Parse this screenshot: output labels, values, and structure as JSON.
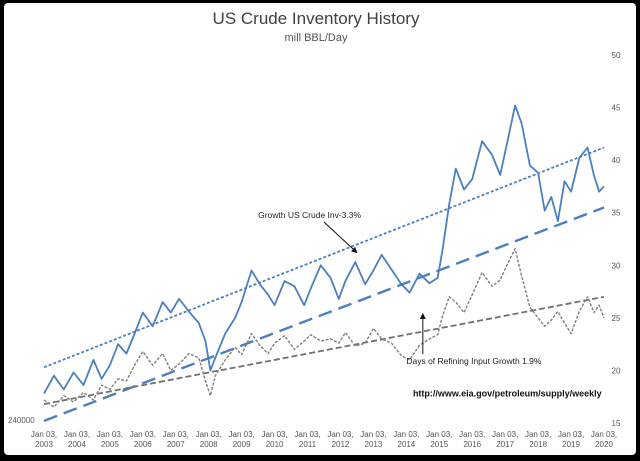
{
  "chart_data": {
    "type": "line",
    "title": "US Crude Inventory History",
    "subtitle": "mill BBL/Day",
    "left_axis_label": "240000",
    "x_tick_labels": [
      [
        "Jan 03,",
        "2003"
      ],
      [
        "Jan 03,",
        "2004"
      ],
      [
        "Jan 03,",
        "2005"
      ],
      [
        "Jan 03,",
        "2006"
      ],
      [
        "Jan 03,",
        "2007"
      ],
      [
        "Jan 03,",
        "2008"
      ],
      [
        "Jan 03,",
        "2009"
      ],
      [
        "Jan 03,",
        "2010"
      ],
      [
        "Jan 03,",
        "2011"
      ],
      [
        "Jan 03,",
        "2012"
      ],
      [
        "Jan 03,",
        "2013"
      ],
      [
        "Jan 03,",
        "2014"
      ],
      [
        "Jan 03,",
        "2015"
      ],
      [
        "Jan 03,",
        "2016"
      ],
      [
        "Jan 03,",
        "2017"
      ],
      [
        "Jan 03,",
        "2018"
      ],
      [
        "Jan 03,",
        "2019"
      ],
      [
        "Jan 03,",
        "2020"
      ]
    ],
    "y_right": {
      "ticks": [
        15,
        20,
        25,
        30,
        35,
        40,
        45,
        50
      ],
      "ylim": [
        15,
        50
      ]
    },
    "x_range": [
      2003.0,
      2020.0
    ],
    "grid": false,
    "series": [
      {
        "name": "US Crude Inventory",
        "color": "#4a7fc0",
        "style": "solid",
        "points": [
          [
            2003.0,
            17.8
          ],
          [
            2003.3,
            19.5
          ],
          [
            2003.6,
            18.2
          ],
          [
            2003.9,
            19.8
          ],
          [
            2004.2,
            18.6
          ],
          [
            2004.5,
            21.0
          ],
          [
            2004.75,
            19.2
          ],
          [
            2005.0,
            20.5
          ],
          [
            2005.25,
            22.5
          ],
          [
            2005.5,
            21.6
          ],
          [
            2005.75,
            23.5
          ],
          [
            2006.0,
            25.5
          ],
          [
            2006.3,
            24.2
          ],
          [
            2006.6,
            26.5
          ],
          [
            2006.85,
            25.5
          ],
          [
            2007.1,
            26.8
          ],
          [
            2007.4,
            25.6
          ],
          [
            2007.7,
            24.5
          ],
          [
            2007.9,
            22.8
          ],
          [
            2008.05,
            20.0
          ],
          [
            2008.2,
            21.2
          ],
          [
            2008.5,
            23.5
          ],
          [
            2008.8,
            25.0
          ],
          [
            2009.0,
            26.5
          ],
          [
            2009.3,
            29.5
          ],
          [
            2009.55,
            28.2
          ],
          [
            2009.8,
            27.2
          ],
          [
            2010.0,
            26.2
          ],
          [
            2010.3,
            28.5
          ],
          [
            2010.6,
            28.0
          ],
          [
            2010.9,
            26.2
          ],
          [
            2011.1,
            27.8
          ],
          [
            2011.4,
            30.0
          ],
          [
            2011.7,
            28.8
          ],
          [
            2011.95,
            26.8
          ],
          [
            2012.15,
            28.5
          ],
          [
            2012.45,
            30.3
          ],
          [
            2012.75,
            28.2
          ],
          [
            2013.0,
            29.5
          ],
          [
            2013.25,
            31.0
          ],
          [
            2013.55,
            29.6
          ],
          [
            2013.85,
            28.2
          ],
          [
            2014.1,
            27.4
          ],
          [
            2014.4,
            29.2
          ],
          [
            2014.7,
            28.3
          ],
          [
            2014.95,
            28.8
          ],
          [
            2015.1,
            31.5
          ],
          [
            2015.3,
            35.8
          ],
          [
            2015.5,
            39.2
          ],
          [
            2015.75,
            37.2
          ],
          [
            2016.0,
            38.2
          ],
          [
            2016.3,
            41.8
          ],
          [
            2016.6,
            40.5
          ],
          [
            2016.85,
            38.6
          ],
          [
            2017.05,
            41.5
          ],
          [
            2017.3,
            45.2
          ],
          [
            2017.5,
            43.5
          ],
          [
            2017.75,
            39.5
          ],
          [
            2018.0,
            38.8
          ],
          [
            2018.2,
            35.2
          ],
          [
            2018.4,
            36.5
          ],
          [
            2018.6,
            34.2
          ],
          [
            2018.8,
            38.0
          ],
          [
            2019.0,
            37.0
          ],
          [
            2019.25,
            40.2
          ],
          [
            2019.5,
            41.2
          ],
          [
            2019.7,
            38.5
          ],
          [
            2019.85,
            37.0
          ],
          [
            2020.0,
            37.5
          ]
        ]
      },
      {
        "name": "Days of Refining Input",
        "color": "#808080",
        "style": "dashed",
        "points": [
          [
            2003.0,
            17.2
          ],
          [
            2003.3,
            16.5
          ],
          [
            2003.6,
            17.6
          ],
          [
            2003.9,
            17.0
          ],
          [
            2004.2,
            17.9
          ],
          [
            2004.5,
            17.2
          ],
          [
            2004.75,
            18.6
          ],
          [
            2005.0,
            18.2
          ],
          [
            2005.25,
            19.2
          ],
          [
            2005.5,
            19.0
          ],
          [
            2005.75,
            20.5
          ],
          [
            2006.0,
            21.8
          ],
          [
            2006.3,
            20.5
          ],
          [
            2006.6,
            21.6
          ],
          [
            2006.85,
            20.0
          ],
          [
            2007.1,
            20.6
          ],
          [
            2007.4,
            21.6
          ],
          [
            2007.7,
            21.2
          ],
          [
            2007.9,
            19.0
          ],
          [
            2008.05,
            17.6
          ],
          [
            2008.2,
            19.5
          ],
          [
            2008.5,
            21.0
          ],
          [
            2008.8,
            22.2
          ],
          [
            2009.0,
            21.5
          ],
          [
            2009.3,
            23.5
          ],
          [
            2009.55,
            22.4
          ],
          [
            2009.8,
            21.6
          ],
          [
            2010.0,
            22.6
          ],
          [
            2010.3,
            23.3
          ],
          [
            2010.6,
            22.0
          ],
          [
            2010.9,
            22.8
          ],
          [
            2011.1,
            23.4
          ],
          [
            2011.4,
            22.8
          ],
          [
            2011.7,
            23.0
          ],
          [
            2011.95,
            22.6
          ],
          [
            2012.15,
            23.6
          ],
          [
            2012.45,
            22.3
          ],
          [
            2012.75,
            22.6
          ],
          [
            2013.0,
            24.0
          ],
          [
            2013.25,
            23.0
          ],
          [
            2013.55,
            22.6
          ],
          [
            2013.85,
            21.4
          ],
          [
            2014.1,
            21.0
          ],
          [
            2014.4,
            22.4
          ],
          [
            2014.7,
            23.0
          ],
          [
            2014.95,
            23.4
          ],
          [
            2015.1,
            25.2
          ],
          [
            2015.3,
            27.0
          ],
          [
            2015.5,
            26.5
          ],
          [
            2015.75,
            25.5
          ],
          [
            2016.0,
            27.2
          ],
          [
            2016.3,
            29.3
          ],
          [
            2016.6,
            28.0
          ],
          [
            2016.85,
            28.6
          ],
          [
            2017.05,
            30.0
          ],
          [
            2017.3,
            31.6
          ],
          [
            2017.5,
            29.0
          ],
          [
            2017.75,
            26.0
          ],
          [
            2018.0,
            25.0
          ],
          [
            2018.2,
            24.2
          ],
          [
            2018.4,
            24.8
          ],
          [
            2018.6,
            25.6
          ],
          [
            2018.8,
            24.5
          ],
          [
            2019.0,
            23.5
          ],
          [
            2019.25,
            25.6
          ],
          [
            2019.5,
            27.0
          ],
          [
            2019.7,
            25.5
          ],
          [
            2019.85,
            26.2
          ],
          [
            2020.0,
            25.0
          ]
        ]
      }
    ],
    "trend_lines": [
      {
        "name": "upper-channel",
        "color": "#4a7fc0",
        "style": "dotted",
        "from": [
          2003.0,
          20.3
        ],
        "to": [
          2020.0,
          41.2
        ]
      },
      {
        "name": "lower-channel",
        "color": "#4a7fc0",
        "style": "long-dash",
        "from": [
          2003.0,
          15.2
        ],
        "to": [
          2020.0,
          35.5
        ]
      },
      {
        "name": "refining-trend",
        "color": "#707070",
        "style": "dashed",
        "from": [
          2003.0,
          16.8
        ],
        "to": [
          2020.0,
          27.0
        ]
      }
    ],
    "annotations": [
      {
        "text": "Growth US Crude Inv-3.3%",
        "at": [
          2009.5,
          34.5
        ],
        "arrow_to": [
          2012.5,
          31.2
        ]
      },
      {
        "text": "Days of Refining Input Growth 1.9%",
        "at": [
          2014.0,
          20.6
        ],
        "arrow_to": [
          2014.5,
          25.4
        ]
      },
      {
        "text": "http://www.eia.gov/petroleum/supply/weekly",
        "at": [
          2014.2,
          17.5
        ]
      }
    ]
  }
}
